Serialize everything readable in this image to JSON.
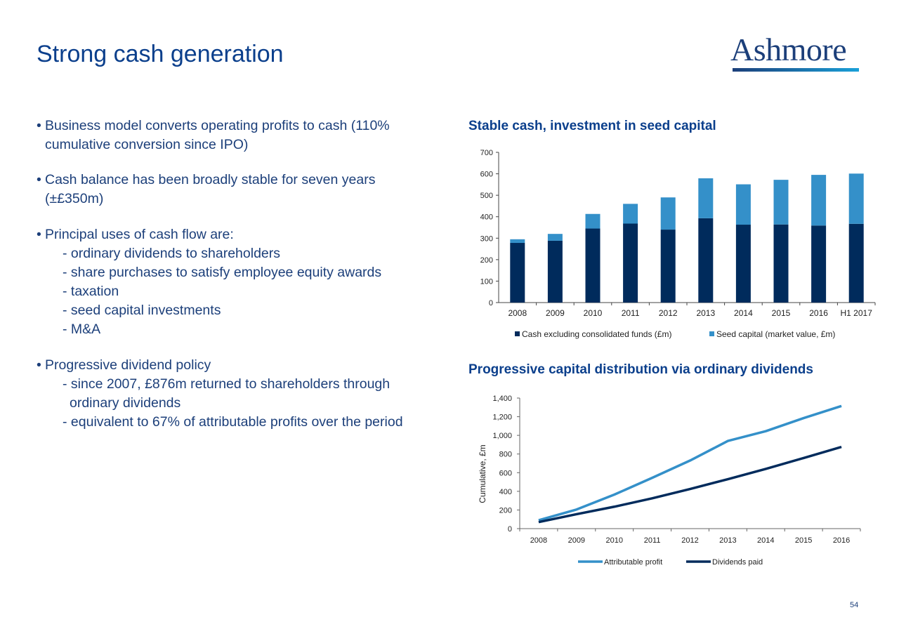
{
  "title": "Strong cash generation",
  "logo": {
    "name": "Ashmore"
  },
  "bullets": {
    "b1": {
      "line1": "Business model converts operating profits to cash (110%",
      "line2": "cumulative conversion since IPO)"
    },
    "b2": {
      "line1": "Cash balance has been broadly stable for seven years",
      "line2": "(±£350m)"
    },
    "b3": {
      "heading": "Principal uses of cash flow are:",
      "items": [
        "- ordinary dividends to shareholders",
        "- share purchases to satisfy employee equity awards",
        "- taxation",
        "- seed capital investments",
        "- M&A"
      ]
    },
    "b4": {
      "heading": "Progressive dividend policy",
      "item1_line1": "- since 2007, £876m returned to shareholders through",
      "item1_line2": "ordinary dividends",
      "item2": "- equivalent to 67% of attributable profits over the period"
    },
    "bullet_char": "•"
  },
  "chart_data": [
    {
      "type": "bar",
      "stacked": true,
      "title": "Stable cash, investment in seed capital",
      "categories": [
        "2008",
        "2009",
        "2010",
        "2011",
        "2012",
        "2013",
        "2014",
        "2015",
        "2016",
        "H1 2017"
      ],
      "series": [
        {
          "name": "Cash excluding consolidated funds (£m)",
          "color": "#002b5c",
          "values": [
            278,
            288,
            345,
            368,
            340,
            393,
            363,
            364,
            359,
            367
          ]
        },
        {
          "name": "Seed capital (market value, £m)",
          "color": "#3490c9",
          "values": [
            17,
            32,
            68,
            92,
            150,
            186,
            188,
            208,
            236,
            234
          ]
        }
      ],
      "yticks": [
        "0",
        "100",
        "200",
        "300",
        "400",
        "500",
        "600",
        "700"
      ],
      "ylim": [
        0,
        700
      ],
      "grid": false,
      "legend": "bottom"
    },
    {
      "type": "line",
      "title": "Progressive capital distribution via ordinary dividends",
      "ylabel": "Cumulative, £m",
      "categories": [
        "2008",
        "2009",
        "2010",
        "2011",
        "2012",
        "2013",
        "2014",
        "2015",
        "2016"
      ],
      "series": [
        {
          "name": "Attributable profit",
          "color": "#3490c9",
          "values": [
            90,
            205,
            365,
            545,
            730,
            940,
            1045,
            1185,
            1315
          ]
        },
        {
          "name": "Dividends paid",
          "color": "#002b5c",
          "values": [
            70,
            155,
            235,
            325,
            425,
            530,
            640,
            757,
            876
          ]
        }
      ],
      "yticks": [
        "0",
        "200",
        "400",
        "600",
        "800",
        "1,000",
        "1,200",
        "1,400"
      ],
      "ylim": [
        0,
        1400
      ],
      "grid": false,
      "legend": "bottom"
    }
  ],
  "page_number": "54"
}
